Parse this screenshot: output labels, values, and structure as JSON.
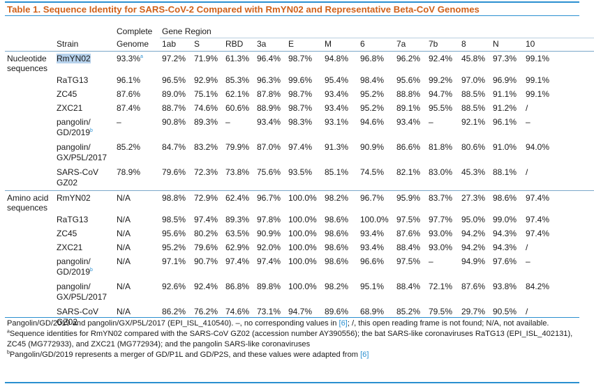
{
  "title": "Table 1. Sequence Identity for SARS-CoV-2 Compared with RmYN02 and Representative Beta-CoV Genomes",
  "header": {
    "strain": "Strain",
    "complete_line1": "Complete",
    "complete_line2": "Genome",
    "gene_region": "Gene Region",
    "genes": [
      "1ab",
      "S",
      "RBD",
      "3a",
      "E",
      "M",
      "6",
      "7a",
      "7b",
      "8",
      "N",
      "10"
    ]
  },
  "groups": [
    {
      "label": "Nucleotide sequences",
      "rows": [
        {
          "strain": "RmYN02",
          "sup": "",
          "complete": "93.3%",
          "complete_sup": "a",
          "values": [
            "97.2%",
            "71.9%",
            "61.3%",
            "96.4%",
            "98.7%",
            "94.8%",
            "96.8%",
            "96.2%",
            "92.4%",
            "45.8%",
            "97.3%",
            "99.1%"
          ]
        },
        {
          "strain": "RaTG13",
          "sup": "",
          "complete": "96.1%",
          "complete_sup": "",
          "values": [
            "96.5%",
            "92.9%",
            "85.3%",
            "96.3%",
            "99.6%",
            "95.4%",
            "98.4%",
            "95.6%",
            "99.2%",
            "97.0%",
            "96.9%",
            "99.1%"
          ]
        },
        {
          "strain": "ZC45",
          "sup": "",
          "complete": "87.6%",
          "complete_sup": "",
          "values": [
            "89.0%",
            "75.1%",
            "62.1%",
            "87.8%",
            "98.7%",
            "93.4%",
            "95.2%",
            "88.8%",
            "94.7%",
            "88.5%",
            "91.1%",
            "99.1%"
          ]
        },
        {
          "strain": "ZXC21",
          "sup": "",
          "complete": "87.4%",
          "complete_sup": "",
          "values": [
            "88.7%",
            "74.6%",
            "60.6%",
            "88.9%",
            "98.7%",
            "93.4%",
            "95.2%",
            "89.1%",
            "95.5%",
            "88.5%",
            "91.2%",
            "/"
          ]
        },
        {
          "strain": "pangolin/ GD/2019",
          "sup": "b",
          "complete": "–",
          "complete_sup": "",
          "values": [
            "90.8%",
            "89.3%",
            "–",
            "93.4%",
            "98.3%",
            "93.1%",
            "94.6%",
            "93.4%",
            "–",
            "92.1%",
            "96.1%",
            "–"
          ]
        },
        {
          "strain": "pangolin/ GX/P5L/2017",
          "sup": "",
          "complete": "85.2%",
          "complete_sup": "",
          "values": [
            "84.7%",
            "83.2%",
            "79.9%",
            "87.0%",
            "97.4%",
            "91.3%",
            "90.9%",
            "86.6%",
            "81.8%",
            "80.6%",
            "91.0%",
            "94.0%"
          ]
        },
        {
          "strain": "SARS-CoV GZ02",
          "sup": "",
          "complete": "78.9%",
          "complete_sup": "",
          "values": [
            "79.6%",
            "72.3%",
            "73.8%",
            "75.6%",
            "93.5%",
            "85.1%",
            "74.5%",
            "82.1%",
            "83.0%",
            "45.3%",
            "88.1%",
            "/"
          ]
        }
      ]
    },
    {
      "label": "Amino acid sequences",
      "rows": [
        {
          "strain": "RmYN02",
          "sup": "",
          "complete": "N/A",
          "complete_sup": "",
          "values": [
            "98.8%",
            "72.9%",
            "62.4%",
            "96.7%",
            "100.0%",
            "98.2%",
            "96.7%",
            "95.9%",
            "83.7%",
            "27.3%",
            "98.6%",
            "97.4%"
          ]
        },
        {
          "strain": "RaTG13",
          "sup": "",
          "complete": "N/A",
          "complete_sup": "",
          "values": [
            "98.5%",
            "97.4%",
            "89.3%",
            "97.8%",
            "100.0%",
            "98.6%",
            "100.0%",
            "97.5%",
            "97.7%",
            "95.0%",
            "99.0%",
            "97.4%"
          ]
        },
        {
          "strain": "ZC45",
          "sup": "",
          "complete": "N/A",
          "complete_sup": "",
          "values": [
            "95.6%",
            "80.2%",
            "63.5%",
            "90.9%",
            "100.0%",
            "98.6%",
            "93.4%",
            "87.6%",
            "93.0%",
            "94.2%",
            "94.3%",
            "97.4%"
          ]
        },
        {
          "strain": "ZXC21",
          "sup": "",
          "complete": "N/A",
          "complete_sup": "",
          "values": [
            "95.2%",
            "79.6%",
            "62.9%",
            "92.0%",
            "100.0%",
            "98.6%",
            "93.4%",
            "88.4%",
            "93.0%",
            "94.2%",
            "94.3%",
            "/"
          ]
        },
        {
          "strain": "pangolin/ GD/2019",
          "sup": "b",
          "complete": "N/A",
          "complete_sup": "",
          "values": [
            "97.1%",
            "90.7%",
            "97.4%",
            "97.4%",
            "100.0%",
            "98.6%",
            "96.6%",
            "97.5%",
            "–",
            "94.9%",
            "97.6%",
            "–"
          ]
        },
        {
          "strain": "pangolin/ GX/P5L/2017",
          "sup": "",
          "complete": "N/A",
          "complete_sup": "",
          "values": [
            "92.6%",
            "92.4%",
            "86.8%",
            "89.8%",
            "100.0%",
            "98.2%",
            "95.1%",
            "88.4%",
            "72.1%",
            "87.6%",
            "93.8%",
            "84.2%"
          ]
        },
        {
          "strain": "SARS-CoV GZ02",
          "sup": "",
          "complete": "N/A",
          "complete_sup": "",
          "values": [
            "86.2%",
            "76.2%",
            "74.6%",
            "73.1%",
            "94.7%",
            "89.6%",
            "68.9%",
            "85.2%",
            "79.5%",
            "29.7%",
            "90.5%",
            "/"
          ]
        }
      ]
    }
  ],
  "notes": {
    "line1_a": "Pangolin/GD/2019 and pangolin/GX/P5L/2017 (EPI_ISL_410540). –, no corresponding values in ",
    "line1_ref": "[6]",
    "line1_b": "; /, this open reading frame is not found; N/A, not available.",
    "note_a_mark": "a",
    "note_a": "Sequence identities for RmYN02 compared with the SARS-CoV GZ02 (accession number AY390556); the bat SARS-like coronaviruses RaTG13 (EPI_ISL_402131), ZC45 (MG772933), and ZXC21 (MG772934); and the pangolin SARS-like coronaviruses",
    "note_b_mark": "b",
    "note_b": "Pangolin/GD/2019 represents a merger of GD/P1L and GD/P2S, and these values were adapted from ",
    "note_b_ref": "[6]"
  },
  "colors": {
    "title": "#d0611a",
    "rule": "#2a8fd0",
    "highlight": "#b7d2ec"
  }
}
